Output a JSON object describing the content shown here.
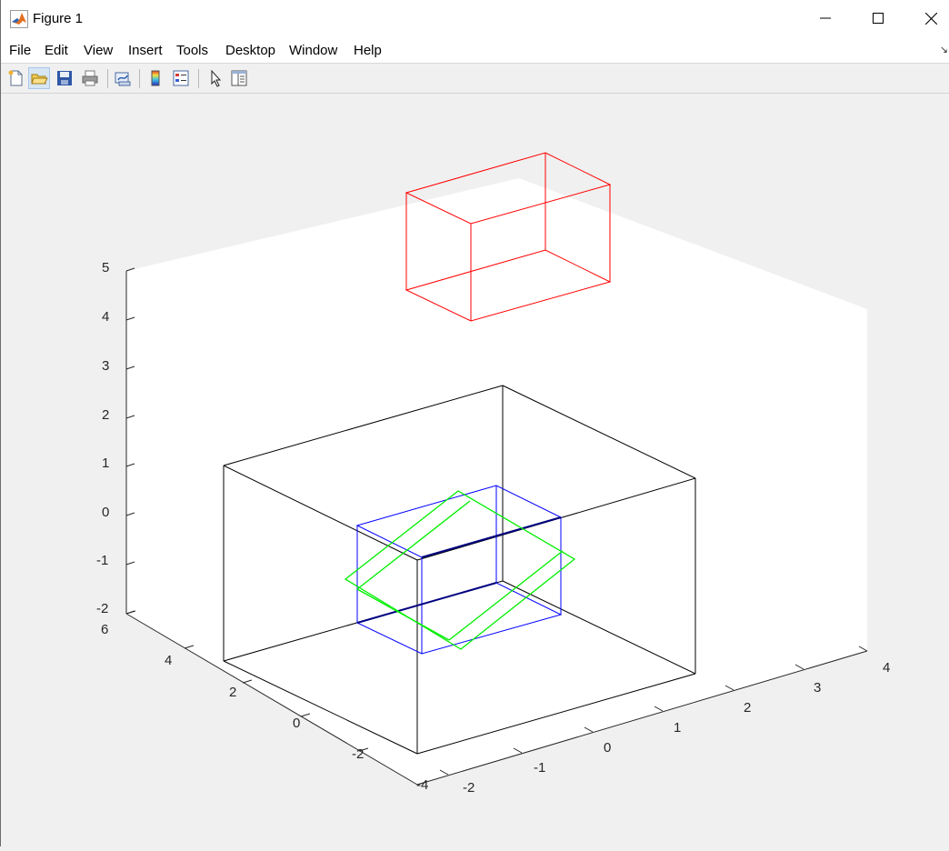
{
  "window": {
    "title": "Figure 1",
    "icon": "matlab-logo-icon",
    "controls": [
      "minimize-icon",
      "maximize-icon",
      "close-icon"
    ]
  },
  "menubar": {
    "items": [
      "File",
      "Edit",
      "View",
      "Insert",
      "Tools",
      "Desktop",
      "Window",
      "Help"
    ]
  },
  "toolbar": {
    "buttons": [
      {
        "name": "new-figure-icon",
        "active": false
      },
      {
        "name": "open-file-icon",
        "active": true
      },
      {
        "name": "save-icon",
        "active": false
      },
      {
        "name": "print-icon",
        "active": false
      },
      {
        "name": "link-plot-icon",
        "active": false
      },
      {
        "name": "insert-colorbar-icon",
        "active": false
      },
      {
        "name": "insert-legend-icon",
        "active": false
      },
      {
        "name": "edit-plot-arrow-icon",
        "active": false
      },
      {
        "name": "property-inspector-icon",
        "active": false
      }
    ]
  },
  "axes": {
    "x_ticks": [
      "-2",
      "-1",
      "0",
      "1",
      "2",
      "3",
      "4"
    ],
    "y_ticks": [
      "-4",
      "-2",
      "0",
      "2",
      "4",
      "6"
    ],
    "z_ticks": [
      "-2",
      "-1",
      "0",
      "1",
      "2",
      "3",
      "4",
      "5"
    ],
    "xlim": [
      -2,
      4
    ],
    "ylim": [
      -4,
      6
    ],
    "zlim": [
      -2,
      5
    ]
  },
  "colors": {
    "red_box": "#ff0000",
    "black_box": "#000000",
    "blue_box": "#0000ff",
    "green_box": "#00ff00",
    "axes_background": "#ffffff",
    "figure_background": "#f0f0f0"
  }
}
